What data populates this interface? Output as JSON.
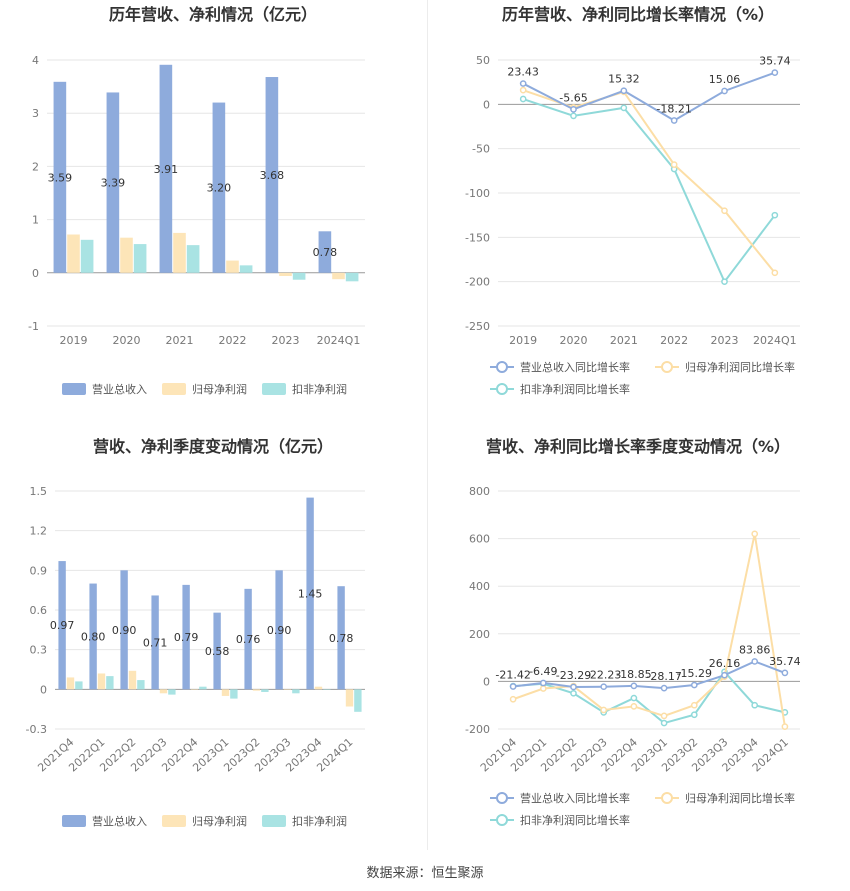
{
  "footer": {
    "source": "数据来源：恒生聚源"
  },
  "colors": {
    "revenue": "#8eabdc",
    "net": "#fde5b8",
    "deducted": "#a9e3e3",
    "revenue_line": "#8eabdc",
    "net_line": "#fcdea6",
    "deducted_line": "#8fd9d9"
  },
  "chart_data": [
    {
      "id": "annual_bar",
      "type": "bar",
      "title": "历年营收、净利情况（亿元）",
      "categories": [
        "2019",
        "2020",
        "2021",
        "2022",
        "2023",
        "2024Q1"
      ],
      "ylim": [
        -1,
        4
      ],
      "yticks": [
        -1,
        0,
        1,
        2,
        3,
        4
      ],
      "series": [
        {
          "name": "营业总收入",
          "values": [
            3.59,
            3.39,
            3.91,
            3.2,
            3.68,
            0.78
          ],
          "labels": [
            "3.59",
            "3.39",
            "3.91",
            "3.20",
            "3.68",
            "0.78"
          ]
        },
        {
          "name": "归母净利润",
          "values": [
            0.72,
            0.66,
            0.75,
            0.23,
            -0.06,
            -0.12
          ]
        },
        {
          "name": "扣非净利润",
          "values": [
            0.62,
            0.54,
            0.52,
            0.14,
            -0.13,
            -0.16
          ]
        }
      ],
      "legend": "bottom"
    },
    {
      "id": "annual_line",
      "type": "line",
      "title": "历年营收、净利同比增长率情况（%）",
      "categories": [
        "2019",
        "2020",
        "2021",
        "2022",
        "2023",
        "2024Q1"
      ],
      "ylim": [
        -250,
        50
      ],
      "yticks": [
        -250,
        -200,
        -150,
        -100,
        -50,
        0,
        50
      ],
      "series": [
        {
          "name": "营业总收入同比增长率",
          "values": [
            23.43,
            -5.65,
            15.32,
            -18.21,
            15.06,
            35.74
          ],
          "labels": [
            "23.43",
            "-5.65",
            "15.32",
            "-18.21",
            "15.06",
            "35.74"
          ]
        },
        {
          "name": "归母净利润同比增长率",
          "values": [
            16.0,
            -3.5,
            14.0,
            -68.0,
            -120.0,
            -190.0
          ]
        },
        {
          "name": "扣非净利润同比增长率",
          "values": [
            6.0,
            -13.0,
            -4.0,
            -73.0,
            -200.0,
            -125.0
          ]
        }
      ],
      "legend": "bottom"
    },
    {
      "id": "quarter_bar",
      "type": "bar",
      "title": "营收、净利季度变动情况（亿元）",
      "categories": [
        "2021Q4",
        "2022Q1",
        "2022Q2",
        "2022Q3",
        "2022Q4",
        "2023Q1",
        "2023Q2",
        "2023Q3",
        "2023Q4",
        "2024Q1"
      ],
      "ylim": [
        -0.3,
        1.5
      ],
      "yticks": [
        -0.3,
        0,
        0.3,
        0.6,
        0.9,
        1.2,
        1.5
      ],
      "series": [
        {
          "name": "营业总收入",
          "values": [
            0.97,
            0.8,
            0.9,
            0.71,
            0.79,
            0.58,
            0.76,
            0.9,
            1.45,
            0.78
          ],
          "labels": [
            "0.97",
            "0.80",
            "0.90",
            "0.71",
            "0.79",
            "0.58",
            "0.76",
            "0.90",
            "1.45",
            "0.78"
          ]
        },
        {
          "name": "归母净利润",
          "values": [
            0.09,
            0.12,
            0.14,
            -0.03,
            0.0,
            -0.05,
            -0.01,
            0.0,
            0.02,
            -0.13
          ]
        },
        {
          "name": "扣非净利润",
          "values": [
            0.06,
            0.1,
            0.07,
            -0.04,
            0.02,
            -0.07,
            -0.02,
            -0.03,
            0.0,
            -0.17
          ]
        }
      ],
      "legend": "bottom"
    },
    {
      "id": "quarter_line",
      "type": "line",
      "title": "营收、净利同比增长率季度变动情况（%）",
      "categories": [
        "2021Q4",
        "2022Q1",
        "2022Q2",
        "2022Q3",
        "2022Q4",
        "2023Q1",
        "2023Q2",
        "2023Q3",
        "2023Q4",
        "2024Q1"
      ],
      "ylim": [
        -200,
        800
      ],
      "yticks": [
        -200,
        0,
        200,
        400,
        600,
        800
      ],
      "series": [
        {
          "name": "营业总收入同比增长率",
          "values": [
            -21.42,
            -6.49,
            -23.29,
            -22.23,
            -18.85,
            -28.17,
            -15.29,
            26.16,
            83.86,
            35.74
          ],
          "labels": [
            "-21.42",
            "-6.49",
            "-23.29",
            "-22.23",
            "-18.85",
            "-28.17",
            "-15.29",
            "26.16",
            "83.86",
            "35.74"
          ]
        },
        {
          "name": "归母净利润同比增长率",
          "values": [
            -75,
            -30,
            -20,
            -120,
            -105,
            -145,
            -100,
            20,
            620,
            -190
          ]
        },
        {
          "name": "扣非净利润同比增长率",
          "values": [
            -20,
            -10,
            -50,
            -130,
            -70,
            -175,
            -140,
            40,
            -100,
            -130
          ]
        }
      ],
      "legend": "bottom"
    }
  ]
}
